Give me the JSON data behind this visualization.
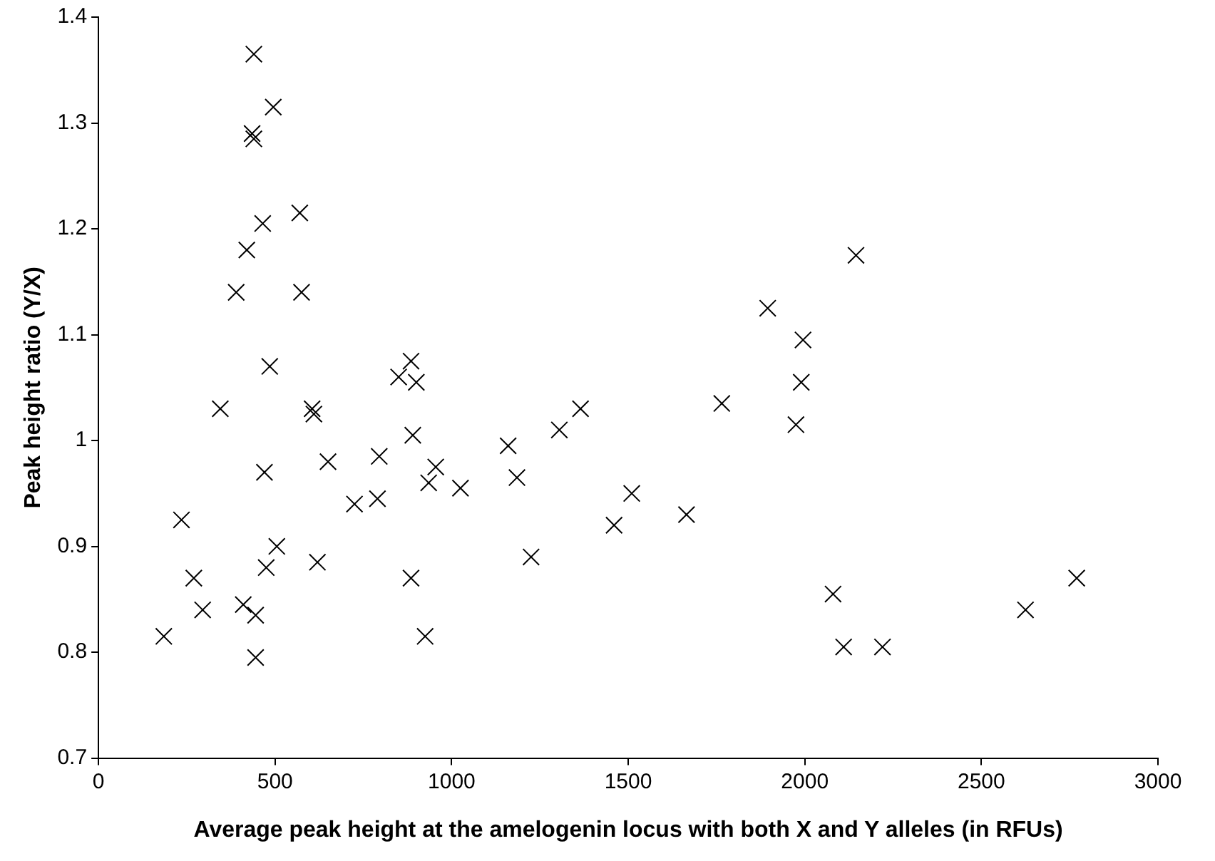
{
  "chart_data": {
    "type": "scatter",
    "xlabel": "Average peak height at the amelogenin locus with both X and Y alleles (in RFUs)",
    "ylabel": "Peak height ratio (Y/X)",
    "marker": "cross",
    "grid": false,
    "legend": false,
    "xlim": [
      0,
      3000
    ],
    "xticks": [
      0,
      500,
      1000,
      1500,
      2000,
      2500,
      3000
    ],
    "ylim": [
      0.7,
      1.4
    ],
    "yticks": [
      0.7,
      0.8,
      0.9,
      1,
      1.1,
      1.2,
      1.3,
      1.4
    ],
    "series": [
      {
        "color": "#000000",
        "x": [
          440,
          495,
          435,
          440,
          570,
          465,
          420,
          390,
          575,
          485,
          885,
          850,
          900,
          345,
          605,
          610,
          890,
          470,
          650,
          795,
          955,
          935,
          1025,
          235,
          725,
          790,
          505,
          475,
          620,
          270,
          885,
          295,
          410,
          445,
          185,
          925,
          445,
          1160,
          1185,
          1225,
          1305,
          1365,
          1460,
          1510,
          1665,
          1765,
          1895,
          2145,
          1995,
          1990,
          1975,
          2080,
          2110,
          2220,
          2625,
          2770
        ],
        "values": [
          1.365,
          1.315,
          1.29,
          1.285,
          1.215,
          1.205,
          1.18,
          1.14,
          1.14,
          1.07,
          1.075,
          1.06,
          1.055,
          1.03,
          1.03,
          1.025,
          1.005,
          0.97,
          0.98,
          0.985,
          0.975,
          0.96,
          0.955,
          0.925,
          0.94,
          0.945,
          0.9,
          0.88,
          0.885,
          0.87,
          0.87,
          0.84,
          0.845,
          0.835,
          0.815,
          0.815,
          0.795,
          0.995,
          0.965,
          0.89,
          1.01,
          1.03,
          0.92,
          0.95,
          0.93,
          1.035,
          1.125,
          1.175,
          1.095,
          1.055,
          1.015,
          0.855,
          0.805,
          0.805,
          0.84,
          0.87
        ]
      }
    ]
  }
}
